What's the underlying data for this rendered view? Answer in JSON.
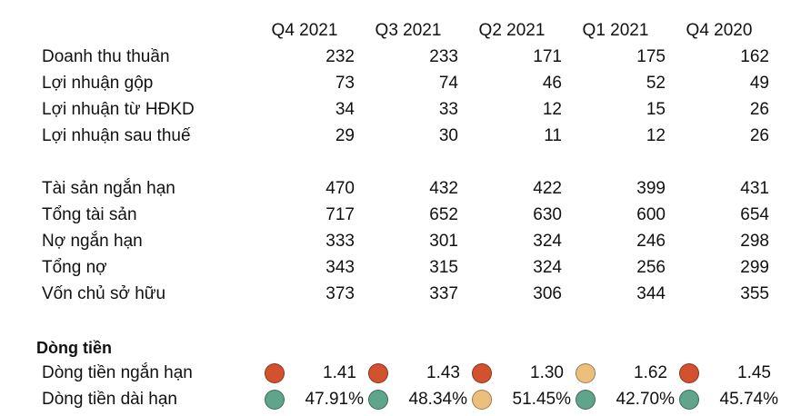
{
  "columns": [
    "Q4 2021",
    "Q3 2021",
    "Q2 2021",
    "Q1 2021",
    "Q4 2020"
  ],
  "income_rows": [
    {
      "label": "Doanh thu thuần",
      "values": [
        "232",
        "233",
        "171",
        "175",
        "162"
      ]
    },
    {
      "label": "Lợi nhuận gộp",
      "values": [
        "73",
        "74",
        "46",
        "52",
        "49"
      ]
    },
    {
      "label": "Lợi nhuận từ HĐKD",
      "values": [
        "34",
        "33",
        "12",
        "15",
        "26"
      ]
    },
    {
      "label": "Lợi nhuận sau thuế",
      "values": [
        "29",
        "30",
        "11",
        "12",
        "26"
      ]
    }
  ],
  "balance_rows": [
    {
      "label": "Tài sản ngắn hạn",
      "values": [
        "470",
        "432",
        "422",
        "399",
        "431"
      ]
    },
    {
      "label": "Tổng tài sản",
      "values": [
        "717",
        "652",
        "630",
        "600",
        "654"
      ]
    },
    {
      "label": "Nợ ngắn hạn",
      "values": [
        "333",
        "301",
        "324",
        "246",
        "298"
      ]
    },
    {
      "label": "Tổng nợ",
      "values": [
        "343",
        "315",
        "324",
        "256",
        "299"
      ]
    },
    {
      "label": "Vốn chủ sở hữu",
      "values": [
        "373",
        "337",
        "306",
        "344",
        "355"
      ]
    }
  ],
  "cashflow": {
    "title": "Dòng tiền",
    "rows": [
      {
        "label": "Dòng tiền ngắn hạn",
        "values": [
          "1.41",
          "1.43",
          "1.30",
          "1.62",
          "1.45"
        ],
        "indicators": [
          "red",
          "red",
          "red",
          "amber",
          "red"
        ]
      },
      {
        "label": "Dòng tiền dài hạn",
        "values": [
          "47.91%",
          "48.34%",
          "51.45%",
          "42.70%",
          "45.74%"
        ],
        "indicators": [
          "green",
          "green",
          "amber",
          "green",
          "green"
        ]
      }
    ]
  },
  "indicator_colors": {
    "red": "#d2522f",
    "amber": "#ecc07c",
    "green": "#5fa48b"
  }
}
